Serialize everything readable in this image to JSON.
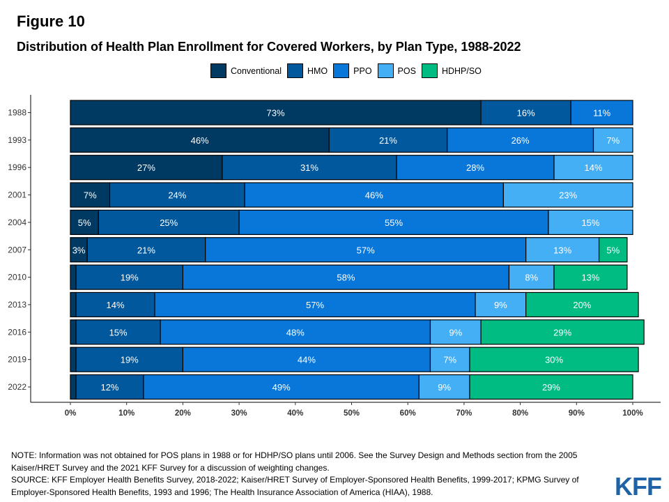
{
  "figure_label": "Figure 10",
  "title": "Distribution of Health Plan Enrollment for Covered Workers, by Plan Type, 1988-2022",
  "colors": {
    "Conventional": "#003a63",
    "HMO": "#02589d",
    "PPO": "#0877d9",
    "POS": "#45aff6",
    "HDHP/SO": "#00bc82"
  },
  "notes": {
    "note_line1": "NOTE: Information was not obtained for POS plans in 1988 or for HDHP/SO plans until 2006. See the Survey Design and Methods section from the 2005",
    "note_line2": "Kaiser/HRET Survey and the 2021 KFF Survey for a discussion of weighting changes.",
    "source_line1": "SOURCE: KFF Employer Health Benefits Survey, 2018-2022; Kaiser/HRET Survey of Employer-Sponsored Health Benefits, 1999-2017; KPMG Survey of",
    "source_line2": "Employer-Sponsored Health Benefits, 1993 and 1996; The Health Insurance Association of America (HIAA), 1988."
  },
  "logo_text": "KFF",
  "chart_data": {
    "type": "bar",
    "orientation": "horizontal",
    "stacked": true,
    "categories": [
      "1988",
      "1993",
      "1996",
      "2001",
      "2004",
      "2007",
      "2010",
      "2013",
      "2016",
      "2019",
      "2022"
    ],
    "series": [
      {
        "name": "Conventional",
        "values": [
          73,
          46,
          27,
          7,
          5,
          3,
          1,
          1,
          1,
          1,
          1
        ],
        "labels": [
          "73%",
          "46%",
          "27%",
          "7%",
          "5%",
          "3%",
          "",
          "",
          "",
          "",
          ""
        ]
      },
      {
        "name": "HMO",
        "values": [
          16,
          21,
          31,
          24,
          25,
          21,
          19,
          14,
          15,
          19,
          12
        ],
        "labels": [
          "16%",
          "21%",
          "31%",
          "24%",
          "25%",
          "21%",
          "19%",
          "14%",
          "15%",
          "19%",
          "12%"
        ]
      },
      {
        "name": "PPO",
        "values": [
          11,
          26,
          28,
          46,
          55,
          57,
          58,
          57,
          48,
          44,
          49
        ],
        "labels": [
          "11%",
          "26%",
          "28%",
          "46%",
          "55%",
          "57%",
          "58%",
          "57%",
          "48%",
          "44%",
          "49%"
        ]
      },
      {
        "name": "POS",
        "values": [
          0,
          7,
          14,
          23,
          15,
          13,
          8,
          9,
          9,
          7,
          9
        ],
        "labels": [
          "",
          "7%",
          "14%",
          "23%",
          "15%",
          "13%",
          "8%",
          "9%",
          "9%",
          "7%",
          "9%"
        ]
      },
      {
        "name": "HDHP/SO",
        "values": [
          0,
          0,
          0,
          0,
          0,
          5,
          13,
          20,
          29,
          30,
          29
        ],
        "labels": [
          "",
          "",
          "",
          "",
          "",
          "5%",
          "13%",
          "20%",
          "29%",
          "30%",
          "29%"
        ]
      }
    ],
    "xlim": [
      0,
      100
    ],
    "xticks": [
      "0%",
      "10%",
      "20%",
      "30%",
      "40%",
      "50%",
      "60%",
      "70%",
      "80%",
      "90%",
      "100%"
    ],
    "legend_position": "top",
    "grid": false
  }
}
